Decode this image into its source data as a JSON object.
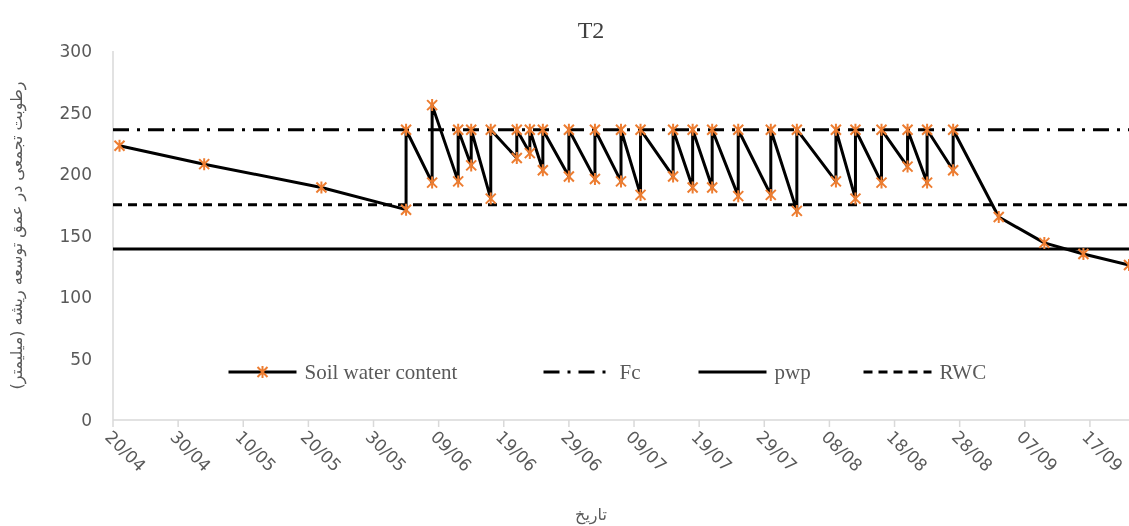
{
  "chart_data": {
    "type": "line",
    "title": "T2",
    "xlabel": "تاریخ",
    "ylabel": "رطوبت تجمعی در عمق توسعه ریشه (میلیمتر)",
    "series": [
      {
        "name": "Soil water content",
        "color": "#000000",
        "x": [
          "--04-21",
          "--05-04",
          "--05-22",
          "--06-04",
          "--06-04",
          "--06-08",
          "--06-08",
          "--06-12",
          "--06-12",
          "--06-14",
          "--06-14",
          "--06-17",
          "--06-17",
          "--06-21",
          "--06-21",
          "--06-23",
          "--06-23",
          "--06-25",
          "--06-25",
          "--06-29",
          "--06-29",
          "--07-03",
          "--07-03",
          "--07-07",
          "--07-07",
          "--07-10",
          "--07-10",
          "--07-15",
          "--07-15",
          "--07-18",
          "--07-18",
          "--07-21",
          "--07-21",
          "--07-25",
          "--07-25",
          "--07-30",
          "--07-30",
          "--08-03",
          "--08-03",
          "--08-09",
          "--08-09",
          "--08-12",
          "--08-12",
          "--08-16",
          "--08-16",
          "--08-20",
          "--08-20",
          "--08-23",
          "--08-23",
          "--08-27",
          "--08-27",
          "--09-03",
          "--09-10",
          "--09-16",
          "--09-23"
        ],
        "values": [
          223,
          208,
          189,
          171,
          236,
          193,
          256,
          194,
          236,
          207,
          236,
          180,
          236,
          213,
          236,
          217,
          236,
          203,
          236,
          198,
          236,
          196,
          236,
          194,
          236,
          183,
          236,
          198,
          236,
          189,
          236,
          189,
          236,
          182,
          236,
          183,
          236,
          170,
          236,
          194,
          236,
          180,
          236,
          193,
          236,
          206,
          236,
          193,
          236,
          203,
          236,
          165,
          144,
          135,
          126
        ]
      }
    ],
    "xlim": [
      "--04-20",
      "--09-23"
    ],
    "xticks": [
      {
        "value": "--04-20",
        "label": "20/04"
      },
      {
        "value": "--04-30",
        "label": "30/04"
      },
      {
        "value": "--05-10",
        "label": "10/05"
      },
      {
        "value": "--05-20",
        "label": "20/05"
      },
      {
        "value": "--05-30",
        "label": "30/05"
      },
      {
        "value": "--06-09",
        "label": "09/06"
      },
      {
        "value": "--06-19",
        "label": "19/06"
      },
      {
        "value": "--06-29",
        "label": "29/06"
      },
      {
        "value": "--07-09",
        "label": "09/07"
      },
      {
        "value": "--07-19",
        "label": "19/07"
      },
      {
        "value": "--07-29",
        "label": "29/07"
      },
      {
        "value": "--08-08",
        "label": "08/08"
      },
      {
        "value": "--08-18",
        "label": "18/08"
      },
      {
        "value": "--08-28",
        "label": "28/08"
      },
      {
        "value": "--09-07",
        "label": "07/09"
      },
      {
        "value": "--09-17",
        "label": "17/09"
      }
    ],
    "ylim": [
      0,
      300
    ],
    "yticks": [
      0,
      50,
      100,
      150,
      200,
      250,
      300
    ],
    "ref_lines": [
      {
        "axis": "y",
        "value": 236,
        "label": "Fc",
        "color": "#000000",
        "line_style": "dashdot"
      },
      {
        "axis": "y",
        "value": 139,
        "label": "pwp",
        "color": "#000000",
        "line_style": "solid"
      },
      {
        "axis": "y",
        "value": 175,
        "label": "RWC",
        "color": "#000000",
        "line_style": "dashed"
      }
    ],
    "marker": "cross",
    "line_style": "solid",
    "legend": "bottom"
  }
}
